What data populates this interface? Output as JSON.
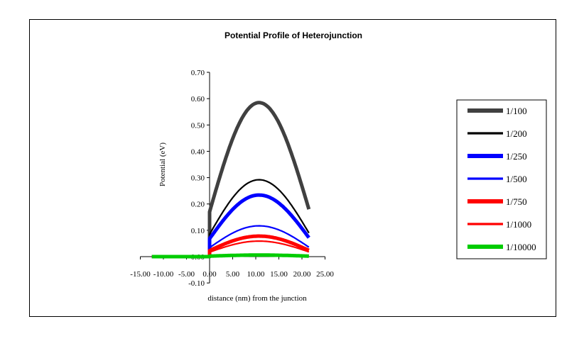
{
  "chart_data": {
    "type": "line",
    "title": "Potential Profile of Heterojunction",
    "xlabel": "distance (nm) from the junction",
    "ylabel": "Potential (eV)",
    "xlim": [
      -15,
      25
    ],
    "ylim": [
      -0.1,
      0.7
    ],
    "x_ticks": [
      "-15.00",
      "-10.00",
      "-5.00",
      "0.00",
      "5.00",
      "10.00",
      "15.00",
      "20.00",
      "25.00"
    ],
    "y_ticks": [
      "-0.10",
      "0.00",
      "0.10",
      "0.20",
      "0.30",
      "0.40",
      "0.50",
      "0.60",
      "0.70"
    ],
    "legend_position": "right",
    "grid": false,
    "series": [
      {
        "name": "1/100",
        "color": "#404040",
        "line_weight": "heavy",
        "x": [
          -12.5,
          0,
          0,
          21.5
        ],
        "y": [
          0,
          0,
          0.17,
          0.18
        ],
        "peak": [
          10.7,
          0.585
        ]
      },
      {
        "name": "1/200",
        "color": "#000000",
        "line_weight": "medium",
        "x": [
          -12.5,
          0,
          0,
          21.5
        ],
        "y": [
          0,
          0,
          0.085,
          0.09
        ],
        "peak": [
          10.7,
          0.292
        ]
      },
      {
        "name": "1/250",
        "color": "#0000ff",
        "line_weight": "heavy",
        "x": [
          -12.5,
          0,
          0,
          21.5
        ],
        "y": [
          0,
          0,
          0.068,
          0.072
        ],
        "peak": [
          10.7,
          0.234
        ]
      },
      {
        "name": "1/500",
        "color": "#0000ff",
        "line_weight": "medium",
        "x": [
          -12.5,
          0,
          0,
          21.5
        ],
        "y": [
          0,
          0,
          0.034,
          0.036
        ],
        "peak": [
          10.7,
          0.117
        ]
      },
      {
        "name": "1/750",
        "color": "#ff0000",
        "line_weight": "heavy",
        "x": [
          -12.5,
          0,
          0,
          21.5
        ],
        "y": [
          0,
          0,
          0.023,
          0.024
        ],
        "peak": [
          10.7,
          0.078
        ]
      },
      {
        "name": "1/1000",
        "color": "#ff0000",
        "line_weight": "medium",
        "x": [
          -12.5,
          0,
          0,
          21.5
        ],
        "y": [
          0,
          0,
          0.017,
          0.018
        ],
        "peak": [
          10.7,
          0.059
        ]
      },
      {
        "name": "1/10000",
        "color": "#00cc00",
        "line_weight": "heavy",
        "x": [
          -12.5,
          0,
          0,
          21.5
        ],
        "y": [
          0,
          0,
          0.002,
          0.002
        ],
        "peak": [
          10.7,
          0.006
        ]
      }
    ]
  }
}
